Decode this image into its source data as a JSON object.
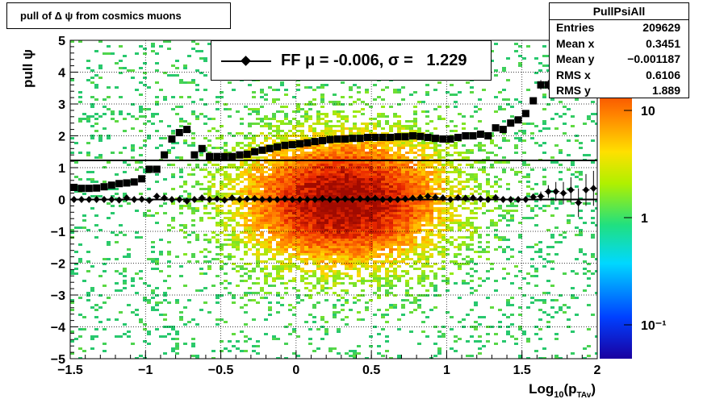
{
  "title": "pull of Δ ψ from cosmics muons",
  "stats": {
    "name": "PullPsiAll",
    "rows": [
      {
        "label": "Entries",
        "value": "209629"
      },
      {
        "label": "Mean x",
        "value": "0.3451"
      },
      {
        "label": "Mean y",
        "value": "−0.001187"
      },
      {
        "label": "RMS x",
        "value": "0.6106"
      },
      {
        "label": "RMS y",
        "value": "1.889"
      }
    ]
  },
  "legend": {
    "label": "FF μ = -0.006, σ =   1.229"
  },
  "chart_data": {
    "type": "heatmap",
    "xlabel": "Log",
    "xlabel_sub": "10",
    "xlabel_paren": "(p",
    "xlabel_sub2": "TAv",
    "xlabel_end": ")",
    "ylabel": "pull ψ",
    "xlim": [
      -1.5,
      2
    ],
    "ylim": [
      -5,
      5
    ],
    "xticks": [
      "−1.5",
      "−1",
      "−0.5",
      "0",
      "0.5",
      "1",
      "1.5",
      "2"
    ],
    "yticks": [
      "−5",
      "−4",
      "−3",
      "−2",
      "−1",
      "0",
      "1",
      "2",
      "3",
      "4",
      "5"
    ],
    "colorbar": {
      "scale": "log",
      "labels": [
        "10",
        "1",
        "10⁻¹"
      ]
    },
    "grid": true,
    "horizontal_line": 1.229,
    "series": [
      {
        "name": "mean",
        "x": [
          -1.475,
          -1.425,
          -1.375,
          -1.325,
          -1.275,
          -1.225,
          -1.175,
          -1.125,
          -1.075,
          -1.025,
          -0.975,
          -0.925,
          -0.875,
          -0.825,
          -0.775,
          -0.725,
          -0.675,
          -0.625,
          -0.575,
          -0.525,
          -0.475,
          -0.425,
          -0.375,
          -0.325,
          -0.275,
          -0.225,
          -0.175,
          -0.125,
          -0.075,
          -0.025,
          0.025,
          0.075,
          0.125,
          0.175,
          0.225,
          0.275,
          0.325,
          0.375,
          0.425,
          0.475,
          0.525,
          0.575,
          0.625,
          0.675,
          0.725,
          0.775,
          0.825,
          0.875,
          0.925,
          0.975,
          1.025,
          1.075,
          1.125,
          1.175,
          1.225,
          1.275,
          1.325,
          1.375,
          1.425,
          1.475,
          1.525,
          1.575,
          1.625,
          1.675,
          1.725,
          1.775,
          1.825,
          1.875,
          1.925,
          1.975
        ],
        "y": [
          0.0,
          0.0,
          0.0,
          0.0,
          0.0,
          0.0,
          -0.02,
          0.05,
          0.0,
          0.01,
          -0.03,
          0.1,
          0.05,
          0.0,
          0.0,
          -0.05,
          0.0,
          0.05,
          0.0,
          0.02,
          -0.02,
          0.05,
          0.0,
          0.02,
          0.03,
          0.0,
          0.0,
          0.0,
          0.02,
          0.0,
          0.0,
          0.0,
          0.0,
          0.03,
          0.0,
          0.0,
          0.02,
          0.0,
          0.02,
          0.02,
          0.04,
          0.0,
          0.0,
          0.0,
          0.02,
          0.04,
          0.06,
          0.1,
          0.07,
          0.05,
          0.0,
          0.06,
          0.04,
          0.05,
          0.02,
          0.0,
          0.06,
          0.0,
          0.0,
          0.0,
          0.0,
          0.08,
          0.1,
          0.25,
          0.25,
          0.2,
          0.3,
          -0.1,
          0.3,
          0.35
        ],
        "err": [
          0.02,
          0.02,
          0.02,
          0.02,
          0.02,
          0.02,
          0.02,
          0.02,
          0.02,
          0.02,
          0.03,
          0.03,
          0.03,
          0.03,
          0.03,
          0.03,
          0.03,
          0.03,
          0.03,
          0.03,
          0.03,
          0.03,
          0.03,
          0.03,
          0.03,
          0.03,
          0.03,
          0.03,
          0.03,
          0.03,
          0.03,
          0.03,
          0.03,
          0.03,
          0.03,
          0.03,
          0.03,
          0.03,
          0.03,
          0.03,
          0.03,
          0.03,
          0.03,
          0.03,
          0.03,
          0.03,
          0.03,
          0.03,
          0.03,
          0.03,
          0.03,
          0.03,
          0.03,
          0.03,
          0.03,
          0.03,
          0.03,
          0.05,
          0.05,
          0.06,
          0.08,
          0.1,
          0.15,
          0.2,
          0.3,
          0.35,
          0.4,
          0.45,
          0.5,
          0.55
        ]
      },
      {
        "name": "rms",
        "x": [
          -1.475,
          -1.425,
          -1.375,
          -1.325,
          -1.275,
          -1.225,
          -1.175,
          -1.125,
          -1.075,
          -1.025,
          -0.975,
          -0.925,
          -0.875,
          -0.825,
          -0.775,
          -0.725,
          -0.675,
          -0.625,
          -0.575,
          -0.525,
          -0.475,
          -0.425,
          -0.375,
          -0.325,
          -0.275,
          -0.225,
          -0.175,
          -0.125,
          -0.075,
          -0.025,
          0.025,
          0.075,
          0.125,
          0.175,
          0.225,
          0.275,
          0.325,
          0.375,
          0.425,
          0.475,
          0.525,
          0.575,
          0.625,
          0.675,
          0.725,
          0.775,
          0.825,
          0.875,
          0.925,
          0.975,
          1.025,
          1.075,
          1.125,
          1.175,
          1.225,
          1.275,
          1.325,
          1.375,
          1.425,
          1.475,
          1.525,
          1.575,
          1.625,
          1.675
        ],
        "y": [
          0.38,
          0.35,
          0.35,
          0.36,
          0.4,
          0.45,
          0.5,
          0.52,
          0.55,
          0.65,
          0.95,
          0.95,
          1.4,
          1.9,
          2.1,
          2.2,
          1.4,
          1.6,
          1.35,
          1.35,
          1.35,
          1.35,
          1.4,
          1.42,
          1.5,
          1.55,
          1.6,
          1.65,
          1.7,
          1.72,
          1.75,
          1.78,
          1.82,
          1.85,
          1.88,
          1.9,
          1.9,
          1.92,
          1.92,
          1.95,
          1.95,
          1.95,
          1.95,
          1.97,
          1.97,
          2.0,
          1.98,
          1.95,
          1.92,
          1.9,
          1.9,
          1.95,
          2.0,
          2.0,
          2.05,
          2.0,
          2.25,
          2.2,
          2.4,
          2.5,
          2.7,
          3.1,
          3.6,
          3.6
        ],
        "err": [
          0.02,
          0.02,
          0.02,
          0.02,
          0.02,
          0.02,
          0.02,
          0.02,
          0.02,
          0.05,
          0.05,
          0.05,
          0.05,
          0.1,
          0.1,
          0.1,
          0.05,
          0.05,
          0.03,
          0.02,
          0.02,
          0.02,
          0.02,
          0.02,
          0.02,
          0.02,
          0.02,
          0.02,
          0.02,
          0.02,
          0.02,
          0.02,
          0.02,
          0.02,
          0.02,
          0.02,
          0.02,
          0.02,
          0.02,
          0.02,
          0.02,
          0.02,
          0.02,
          0.02,
          0.02,
          0.02,
          0.02,
          0.02,
          0.02,
          0.02,
          0.02,
          0.02,
          0.02,
          0.02,
          0.02,
          0.02,
          0.05,
          0.05,
          0.05,
          0.05,
          0.08,
          0.1,
          0.15,
          0.15
        ]
      }
    ]
  }
}
